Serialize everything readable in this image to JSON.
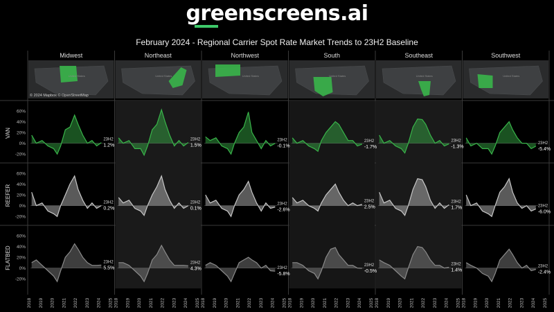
{
  "brand": {
    "logo_text": "greenscreens.ai",
    "accent": "#3ec96a"
  },
  "title": "February 2024 - Regional Carrier Spot Rate Market Trends to 23H2 Baseline",
  "map_credit": "© 2024 Mapbox © OpenStreetMap",
  "map_label": "United States",
  "regions": [
    "Midwest",
    "Northeast",
    "Northwest",
    "South",
    "Southeast",
    "Southwest"
  ],
  "equipment": [
    "VAN",
    "REEFER",
    "FLATBED"
  ],
  "baseline_label": "23H2",
  "colors": {
    "VAN": "#39b54a",
    "REEFER": "#c8c8c8",
    "FLATBED": "#8a8a8a"
  },
  "chart_data": {
    "type": "area",
    "x_ticks": [
      "2018",
      "2019",
      "2020",
      "2021",
      "2022",
      "2023",
      "2024",
      "2025"
    ],
    "y_ticks": [
      "60%",
      "40%",
      "20%",
      "0%",
      "-20%"
    ],
    "ylim": [
      -30,
      65
    ],
    "x_range": [
      2018,
      2025
    ],
    "panels": [
      {
        "equipment": "VAN",
        "region": "Midwest",
        "label": "1.2%",
        "x": [
          2018.1,
          2018.5,
          2019,
          2019.5,
          2020,
          2020.3,
          2020.6,
          2021,
          2021.4,
          2021.8,
          2022.1,
          2022.5,
          2022.9,
          2023.3,
          2023.7,
          2024.1
        ],
        "y": [
          15,
          0,
          5,
          -5,
          -10,
          -20,
          -5,
          25,
          30,
          52,
          35,
          15,
          0,
          5,
          -5,
          1.2
        ]
      },
      {
        "equipment": "VAN",
        "region": "Northeast",
        "label": "1.5%",
        "x": [
          2018.1,
          2018.5,
          2019,
          2019.5,
          2020,
          2020.3,
          2020.6,
          2021,
          2021.4,
          2021.8,
          2022.1,
          2022.5,
          2022.9,
          2023.3,
          2023.7,
          2024.1
        ],
        "y": [
          10,
          0,
          5,
          -10,
          -10,
          -22,
          -5,
          25,
          35,
          62,
          40,
          15,
          -5,
          5,
          -5,
          1.5
        ]
      },
      {
        "equipment": "VAN",
        "region": "Northwest",
        "label": "-0.1%",
        "x": [
          2018.1,
          2018.5,
          2019,
          2019.5,
          2020,
          2020.3,
          2020.6,
          2021,
          2021.4,
          2021.8,
          2022.1,
          2022.5,
          2022.9,
          2023.3,
          2023.7,
          2024.1
        ],
        "y": [
          12,
          5,
          10,
          -5,
          -10,
          -20,
          0,
          20,
          30,
          58,
          20,
          5,
          -10,
          5,
          -5,
          -0.1
        ]
      },
      {
        "equipment": "VAN",
        "region": "South",
        "label": "-1.7%",
        "x": [
          2018.1,
          2018.5,
          2019,
          2019.5,
          2020,
          2020.3,
          2020.6,
          2021,
          2021.4,
          2021.8,
          2022.1,
          2022.5,
          2022.9,
          2023.3,
          2023.7,
          2024.1
        ],
        "y": [
          10,
          0,
          5,
          -5,
          -10,
          -15,
          5,
          20,
          30,
          40,
          35,
          20,
          5,
          5,
          -5,
          -1.7
        ]
      },
      {
        "equipment": "VAN",
        "region": "Southeast",
        "label": "-1.3%",
        "x": [
          2018.1,
          2018.5,
          2019,
          2019.5,
          2020,
          2020.3,
          2020.6,
          2021,
          2021.4,
          2021.8,
          2022.1,
          2022.5,
          2022.9,
          2023.3,
          2023.7,
          2024.1
        ],
        "y": [
          15,
          0,
          5,
          -5,
          -10,
          -18,
          0,
          30,
          45,
          44,
          35,
          15,
          0,
          5,
          -5,
          -1.3
        ]
      },
      {
        "equipment": "VAN",
        "region": "Southwest",
        "label": "-5.4%",
        "x": [
          2018.1,
          2018.5,
          2019,
          2019.5,
          2020,
          2020.3,
          2020.6,
          2021,
          2021.4,
          2021.8,
          2022.1,
          2022.5,
          2022.9,
          2023.3,
          2023.7,
          2024.1
        ],
        "y": [
          10,
          -5,
          0,
          -10,
          -10,
          -20,
          -5,
          20,
          30,
          40,
          25,
          10,
          0,
          0,
          -10,
          -5.4
        ]
      },
      {
        "equipment": "REEFER",
        "region": "Midwest",
        "label": "0.2%",
        "x": [
          2018.1,
          2018.5,
          2019,
          2019.5,
          2020,
          2020.3,
          2020.6,
          2021,
          2021.4,
          2021.8,
          2022.1,
          2022.5,
          2022.9,
          2023.3,
          2023.7,
          2024.1
        ],
        "y": [
          25,
          0,
          5,
          -10,
          -15,
          -20,
          0,
          20,
          40,
          55,
          30,
          10,
          -5,
          5,
          -5,
          0.2
        ]
      },
      {
        "equipment": "REEFER",
        "region": "Northeast",
        "label": "0.1%",
        "x": [
          2018.1,
          2018.5,
          2019,
          2019.5,
          2020,
          2020.3,
          2020.6,
          2021,
          2021.4,
          2021.8,
          2022.1,
          2022.5,
          2022.9,
          2023.3,
          2023.7,
          2024.1
        ],
        "y": [
          15,
          5,
          10,
          -5,
          -10,
          -18,
          0,
          20,
          35,
          55,
          30,
          10,
          -5,
          5,
          -5,
          0.1
        ]
      },
      {
        "equipment": "REEFER",
        "region": "Northwest",
        "label": "-2.6%",
        "x": [
          2018.1,
          2018.5,
          2019,
          2019.5,
          2020,
          2020.3,
          2020.6,
          2021,
          2021.4,
          2021.8,
          2022.1,
          2022.5,
          2022.9,
          2023.3,
          2023.7,
          2024.1
        ],
        "y": [
          20,
          5,
          10,
          -5,
          -10,
          -20,
          0,
          20,
          30,
          45,
          25,
          5,
          -10,
          5,
          -5,
          -2.6
        ]
      },
      {
        "equipment": "REEFER",
        "region": "South",
        "label": "2.5%",
        "x": [
          2018.1,
          2018.5,
          2019,
          2019.5,
          2020,
          2020.3,
          2020.6,
          2021,
          2021.4,
          2021.8,
          2022.1,
          2022.5,
          2022.9,
          2023.3,
          2023.7,
          2024.1
        ],
        "y": [
          15,
          5,
          10,
          0,
          -5,
          -10,
          5,
          20,
          30,
          40,
          25,
          10,
          0,
          5,
          0,
          2.5
        ]
      },
      {
        "equipment": "REEFER",
        "region": "Southeast",
        "label": "1.7%",
        "x": [
          2018.1,
          2018.5,
          2019,
          2019.5,
          2020,
          2020.3,
          2020.6,
          2021,
          2021.4,
          2021.8,
          2022.1,
          2022.5,
          2022.9,
          2023.3,
          2023.7,
          2024.1
        ],
        "y": [
          25,
          5,
          10,
          -5,
          -10,
          -18,
          0,
          30,
          50,
          48,
          35,
          10,
          -5,
          5,
          -5,
          1.7
        ]
      },
      {
        "equipment": "REEFER",
        "region": "Southwest",
        "label": "-6.0%",
        "x": [
          2018.1,
          2018.5,
          2019,
          2019.5,
          2020,
          2020.3,
          2020.6,
          2021,
          2021.4,
          2021.8,
          2022.1,
          2022.5,
          2022.9,
          2023.3,
          2023.7,
          2024.1
        ],
        "y": [
          20,
          0,
          5,
          -10,
          -15,
          -20,
          0,
          25,
          35,
          50,
          25,
          5,
          -5,
          0,
          -10,
          -6.0
        ]
      },
      {
        "equipment": "FLATBED",
        "region": "Midwest",
        "label": "5.5%",
        "x": [
          2018.1,
          2018.5,
          2019,
          2019.5,
          2020,
          2020.3,
          2020.6,
          2021,
          2021.4,
          2021.8,
          2022.1,
          2022.5,
          2022.9,
          2023.3,
          2023.7,
          2024.1
        ],
        "y": [
          10,
          15,
          5,
          -5,
          -15,
          -25,
          -5,
          20,
          30,
          45,
          35,
          20,
          10,
          5,
          5,
          5.5
        ]
      },
      {
        "equipment": "FLATBED",
        "region": "Northeast",
        "label": "4.3%",
        "x": [
          2018.1,
          2018.5,
          2019,
          2019.5,
          2020,
          2020.3,
          2020.6,
          2021,
          2021.4,
          2021.8,
          2022.1,
          2022.5,
          2022.9,
          2023.3,
          2023.7,
          2024.1
        ],
        "y": [
          10,
          10,
          5,
          -5,
          -15,
          -25,
          -10,
          15,
          25,
          42,
          30,
          15,
          5,
          5,
          5,
          4.3
        ]
      },
      {
        "equipment": "FLATBED",
        "region": "Northwest",
        "label": "-5.8%",
        "x": [
          2018.1,
          2018.5,
          2019,
          2019.5,
          2020,
          2020.3,
          2020.6,
          2021,
          2021.4,
          2021.8,
          2022.1,
          2022.5,
          2022.9,
          2023.3,
          2023.7,
          2024.1
        ],
        "y": [
          5,
          10,
          5,
          -5,
          -15,
          -25,
          -10,
          10,
          15,
          20,
          15,
          10,
          0,
          5,
          -5,
          -5.8
        ]
      },
      {
        "equipment": "FLATBED",
        "region": "South",
        "label": "-0.5%",
        "x": [
          2018.1,
          2018.5,
          2019,
          2019.5,
          2020,
          2020.3,
          2020.6,
          2021,
          2021.4,
          2021.8,
          2022.1,
          2022.5,
          2022.9,
          2023.3,
          2023.7,
          2024.1
        ],
        "y": [
          10,
          10,
          5,
          -5,
          -10,
          -20,
          -5,
          20,
          35,
          38,
          25,
          15,
          5,
          5,
          0,
          -0.5
        ]
      },
      {
        "equipment": "FLATBED",
        "region": "Southeast",
        "label": "1.4%",
        "x": [
          2018.1,
          2018.5,
          2019,
          2019.5,
          2020,
          2020.3,
          2020.6,
          2021,
          2021.4,
          2021.8,
          2022.1,
          2022.5,
          2022.9,
          2023.3,
          2023.7,
          2024.1
        ],
        "y": [
          15,
          10,
          5,
          -5,
          -15,
          -20,
          0,
          25,
          40,
          38,
          30,
          15,
          5,
          5,
          0,
          1.4
        ]
      },
      {
        "equipment": "FLATBED",
        "region": "Southwest",
        "label": "-2.4%",
        "x": [
          2018.1,
          2018.5,
          2019,
          2019.5,
          2020,
          2020.3,
          2020.6,
          2021,
          2021.4,
          2021.8,
          2022.1,
          2022.5,
          2022.9,
          2023.3,
          2023.7,
          2024.1
        ],
        "y": [
          10,
          5,
          0,
          -10,
          -15,
          -25,
          -10,
          15,
          25,
          35,
          25,
          10,
          0,
          5,
          -5,
          -2.4
        ]
      }
    ]
  }
}
